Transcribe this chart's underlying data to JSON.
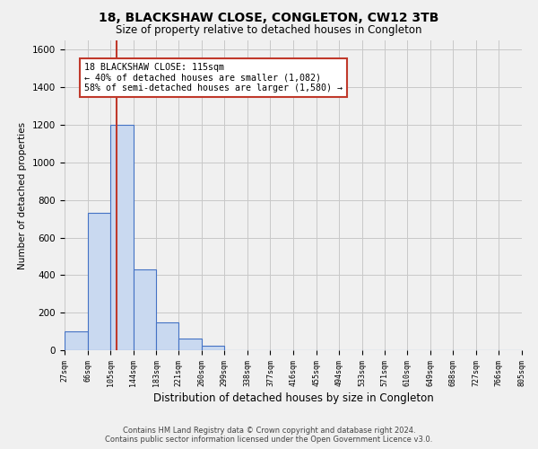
{
  "title": "18, BLACKSHAW CLOSE, CONGLETON, CW12 3TB",
  "subtitle": "Size of property relative to detached houses in Congleton",
  "xlabel": "Distribution of detached houses by size in Congleton",
  "ylabel": "Number of detached properties",
  "footer_line1": "Contains HM Land Registry data © Crown copyright and database right 2024.",
  "footer_line2": "Contains public sector information licensed under the Open Government Licence v3.0.",
  "bar_left_edges": [
    27,
    66,
    105,
    144,
    183,
    221,
    260,
    299,
    338,
    377,
    416,
    455,
    494,
    533,
    571,
    610,
    649,
    688,
    727,
    766
  ],
  "bar_widths": [
    39,
    39,
    39,
    39,
    38,
    39,
    39,
    39,
    39,
    39,
    39,
    39,
    39,
    38,
    39,
    39,
    39,
    39,
    39,
    39
  ],
  "bar_heights": [
    100,
    730,
    1200,
    430,
    150,
    60,
    25,
    0,
    0,
    0,
    0,
    0,
    0,
    0,
    0,
    0,
    0,
    0,
    0,
    0
  ],
  "bar_facecolor": "#c9d9f0",
  "bar_edgecolor": "#4472c4",
  "tick_labels": [
    "27sqm",
    "66sqm",
    "105sqm",
    "144sqm",
    "183sqm",
    "221sqm",
    "260sqm",
    "299sqm",
    "338sqm",
    "377sqm",
    "416sqm",
    "455sqm",
    "494sqm",
    "533sqm",
    "571sqm",
    "610sqm",
    "649sqm",
    "688sqm",
    "727sqm",
    "766sqm",
    "805sqm"
  ],
  "ylim": [
    0,
    1650
  ],
  "yticks": [
    0,
    200,
    400,
    600,
    800,
    1000,
    1200,
    1400,
    1600
  ],
  "xlim": [
    27,
    805
  ],
  "property_size": 115,
  "vline_color": "#c0392b",
  "annotation_text": "18 BLACKSHAW CLOSE: 115sqm\n← 40% of detached houses are smaller (1,082)\n58% of semi-detached houses are larger (1,580) →",
  "annotation_box_edgecolor": "#c0392b",
  "annotation_box_facecolor": "white",
  "grid_color": "#c8c8c8",
  "background_color": "#f0f0f0"
}
